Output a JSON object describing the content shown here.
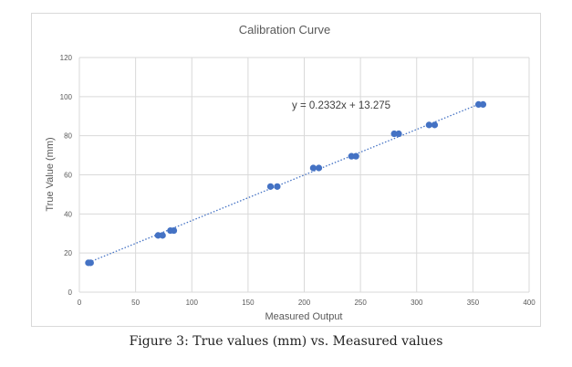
{
  "caption": "Figure 3: True values (mm) vs. Measured values",
  "colors": {
    "marker": "#4472c4",
    "trendline": "#4472c4",
    "grid": "#d9d9d9",
    "text": "#595959"
  },
  "chart_data": {
    "type": "scatter",
    "title": "Calibration Curve",
    "xlabel": "Measured Output",
    "ylabel": "True Value (mm)",
    "xlim": [
      0,
      400
    ],
    "ylim": [
      0,
      120
    ],
    "xticks": [
      0,
      50,
      100,
      150,
      200,
      250,
      300,
      350,
      400
    ],
    "yticks": [
      0,
      20,
      40,
      60,
      80,
      100,
      120
    ],
    "grid": true,
    "trendline": {
      "type": "linear",
      "slope": 0.2332,
      "intercept": 13.275,
      "equation": "y = 0.2332x + 13.275",
      "style": "dotted"
    },
    "points": [
      {
        "x": 8,
        "y": 15
      },
      {
        "x": 10,
        "y": 15
      },
      {
        "x": 70,
        "y": 29
      },
      {
        "x": 74,
        "y": 29
      },
      {
        "x": 81,
        "y": 31.5
      },
      {
        "x": 84,
        "y": 31.5
      },
      {
        "x": 170,
        "y": 54
      },
      {
        "x": 176,
        "y": 54
      },
      {
        "x": 208,
        "y": 63.5
      },
      {
        "x": 213,
        "y": 63.5
      },
      {
        "x": 242,
        "y": 69.5
      },
      {
        "x": 246,
        "y": 69.5
      },
      {
        "x": 280,
        "y": 81
      },
      {
        "x": 284,
        "y": 81
      },
      {
        "x": 311,
        "y": 85.5
      },
      {
        "x": 316,
        "y": 85.5
      },
      {
        "x": 355,
        "y": 96
      },
      {
        "x": 359,
        "y": 96
      }
    ]
  }
}
